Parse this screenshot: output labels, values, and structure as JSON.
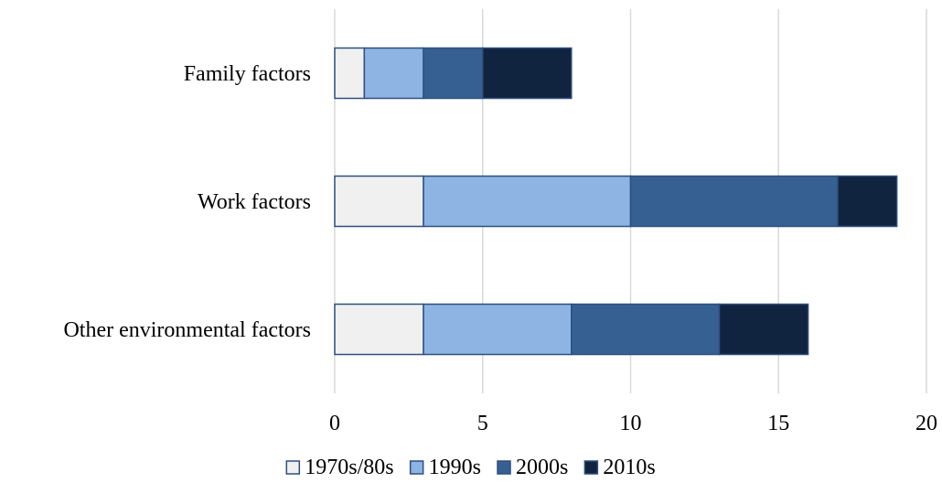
{
  "chart_data": {
    "type": "bar",
    "orientation": "horizontal",
    "stacked": true,
    "categories": [
      "Family factors",
      "Work factors",
      "Other environmental factors"
    ],
    "series": [
      {
        "name": "1970s/80s",
        "values": [
          1,
          3,
          3
        ],
        "color": "#f0f0f0"
      },
      {
        "name": "1990s",
        "values": [
          2,
          7,
          5
        ],
        "color": "#8eb4e3"
      },
      {
        "name": "2000s",
        "values": [
          2,
          7,
          5
        ],
        "color": "#366092"
      },
      {
        "name": "2010s",
        "values": [
          3,
          2,
          3
        ],
        "color": "#10243f"
      }
    ],
    "xlim": [
      0,
      20
    ],
    "xticks": [
      0,
      5,
      10,
      15,
      20
    ],
    "title": "",
    "xlabel": "",
    "ylabel": "",
    "grid": "vertical",
    "legend_position": "bottom"
  }
}
